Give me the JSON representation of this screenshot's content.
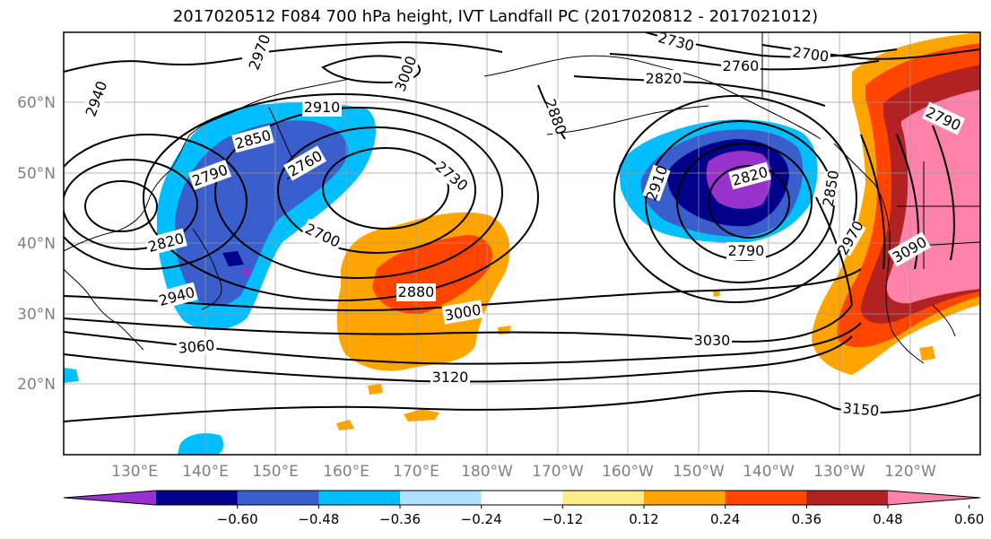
{
  "title": "2017020512 F084 700 hPa height, IVT Landfall PC (2017020812 - 2017021012)",
  "map": {
    "lat_labels": [
      "60°N",
      "50°N",
      "40°N",
      "30°N",
      "20°N"
    ],
    "lon_labels": [
      "130°E",
      "140°E",
      "150°E",
      "160°E",
      "170°E",
      "180°W",
      "170°W",
      "160°W",
      "150°W",
      "140°W",
      "130°W",
      "120°W"
    ],
    "contour_labels": [
      "2940",
      "2970",
      "3000",
      "2910",
      "2850",
      "2790",
      "2760",
      "2730",
      "2700",
      "2820",
      "2940",
      "2880",
      "3000",
      "3060",
      "3120",
      "2730",
      "2760",
      "2700",
      "2820",
      "2880",
      "2910",
      "2820",
      "2790",
      "2850",
      "2790",
      "2970",
      "3090",
      "3030",
      "3150"
    ],
    "colors": {
      "purple": "#9932cc",
      "navy": "#00008b",
      "royal_blue": "#3a5fcd",
      "sky_blue": "#00bfff",
      "light_blue": "#b0e2ff",
      "white": "#ffffff",
      "khaki": "#ffec8b",
      "orange": "#ffa500",
      "orange_red": "#ff4500",
      "firebrick": "#b22222",
      "pink": "#ff82ab"
    }
  },
  "colorbar": {
    "labels": [
      "−0.60",
      "−0.48",
      "−0.36",
      "−0.24",
      "−0.12",
      "0.12",
      "0.24",
      "0.36",
      "0.48",
      "0.60"
    ],
    "colors": [
      "#9932cc",
      "#00008b",
      "#3a5fcd",
      "#00bfff",
      "#b0e2ff",
      "#ffffff",
      "#ffec8b",
      "#ffa500",
      "#ff4500",
      "#b22222",
      "#ff82ab"
    ]
  }
}
